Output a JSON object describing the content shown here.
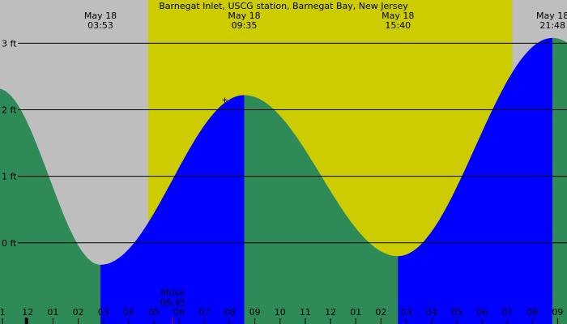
{
  "chart_data": {
    "type": "area",
    "title": "Barnegat Inlet, USCG station, Barnegat Bay, New Jersey",
    "y_unit": "ft",
    "ylim": [
      -1.22,
      3.65
    ],
    "y_ticks": [
      0,
      1,
      2,
      3
    ],
    "x_hours": [
      23.25,
      34.2
    ],
    "x_ticks": [
      "1",
      "12",
      "01",
      "02",
      "03",
      "04",
      "05",
      "06",
      "07",
      "08",
      "09",
      "10",
      "11",
      "12",
      "01",
      "02",
      "03",
      "04",
      "05",
      "06",
      "07",
      "08",
      "09"
    ],
    "daylight": {
      "start": 5.77,
      "end": 20.2
    },
    "tide_points": [
      {
        "x": -0.2,
        "y": 2.32
      },
      {
        "x": 3.88,
        "y": -0.33
      },
      {
        "x": 9.58,
        "y": 2.22
      },
      {
        "x": 15.67,
        "y": -0.2
      },
      {
        "x": 21.8,
        "y": 3.08
      }
    ],
    "tide_labels": [
      {
        "date": "May 18",
        "time": "03:53",
        "hour": 3.88
      },
      {
        "date": "May 18",
        "time": "09:35",
        "hour": 9.58
      },
      {
        "date": "May 18",
        "time": "15:40",
        "hour": 15.67
      },
      {
        "date": "May 18",
        "time": "21:48",
        "hour": 21.8
      }
    ],
    "moon_event": {
      "label": "Mrise",
      "time": "06:45",
      "hour": 6.75
    },
    "colors": {
      "night": "#bebebe",
      "day": "#cccc00",
      "falling": "#2e8b57",
      "rising": "#0000ff"
    }
  }
}
